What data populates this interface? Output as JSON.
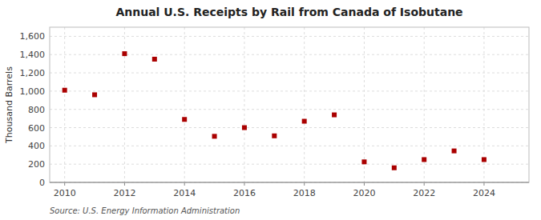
{
  "chart_data": {
    "type": "scatter",
    "title": "Annual U.S. Receipts by Rail from Canada of Isobutane",
    "y_label": "Thousand Barrels",
    "source": "Source: U.S. Energy Information Administration",
    "color": "#aa0000",
    "marker": "square",
    "grid": true,
    "x": [
      2010,
      2011,
      2012,
      2013,
      2014,
      2015,
      2016,
      2017,
      2018,
      2019,
      2020,
      2021,
      2022,
      2023,
      2024
    ],
    "values": [
      1010,
      960,
      1410,
      1350,
      690,
      505,
      600,
      510,
      670,
      740,
      225,
      160,
      250,
      345,
      250
    ],
    "xlim": [
      2009.5,
      2025.5
    ],
    "ylim": [
      0,
      1700
    ],
    "xticks": [
      2010,
      2012,
      2014,
      2016,
      2018,
      2020,
      2022,
      2024
    ],
    "yticks": [
      0,
      200,
      400,
      600,
      800,
      {
        "value": 1000,
        "label": "1,000"
      },
      {
        "value": 1200,
        "label": "1,200"
      },
      {
        "value": 1400,
        "label": "1,400"
      },
      {
        "value": 1600,
        "label": "1,600"
      }
    ]
  }
}
